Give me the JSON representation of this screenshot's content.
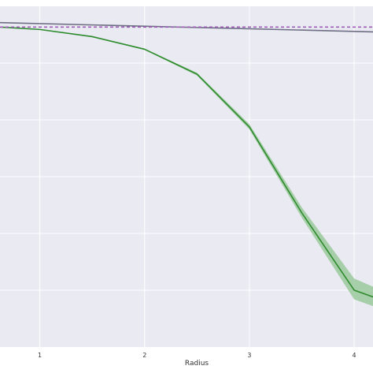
{
  "chart_data": {
    "type": "line",
    "xlabel": "Radius",
    "ylabel": "",
    "title": "",
    "x_ticks": [
      "1",
      "2",
      "3",
      "4"
    ],
    "xlim": [
      0.62,
      4.18
    ],
    "ylim": [
      0,
      1
    ],
    "grid": true,
    "colors": {
      "background": "#eaeaf2",
      "grid": "#ffffff",
      "tick_text": "#333333"
    },
    "series": [
      {
        "color": "#2e8b2e",
        "band_color": "#8fc48f",
        "x": [
          0.62,
          1.0,
          1.5,
          2.0,
          2.5,
          3.0,
          3.5,
          4.0,
          4.18
        ],
        "y": [
          0.939,
          0.932,
          0.911,
          0.874,
          0.801,
          0.646,
          0.394,
          0.167,
          0.147
        ],
        "lower": [
          0.939,
          0.931,
          0.909,
          0.872,
          0.797,
          0.639,
          0.38,
          0.14,
          0.12
        ],
        "upper": [
          0.939,
          0.933,
          0.913,
          0.876,
          0.805,
          0.654,
          0.41,
          0.201,
          0.177
        ]
      },
      {
        "color": "#6e6e85",
        "x": [
          0.62,
          4.18
        ],
        "y": [
          0.952,
          0.925
        ]
      },
      {
        "color": "#9c5fb5",
        "dashed": true,
        "x": [
          0.62,
          4.18
        ],
        "y": [
          0.939,
          0.939
        ]
      }
    ]
  }
}
